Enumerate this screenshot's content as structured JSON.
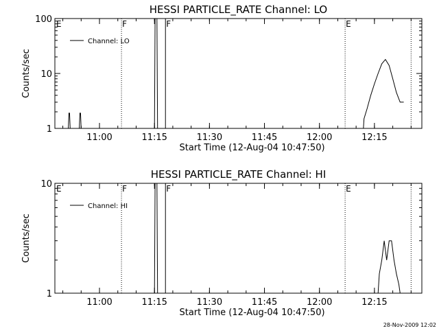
{
  "chart_data": [
    {
      "type": "line",
      "title": "HESSI PARTICLE_RATE Channel: LO",
      "xlabel": "Start Time (12-Aug-04 10:47:50)",
      "ylabel": "Counts/sec",
      "yscale": "log",
      "ylim": [
        1,
        100
      ],
      "xlim_minutes": [
        10.83,
        12.47
      ],
      "xticks": [
        "11:00",
        "11:15",
        "11:30",
        "11:45",
        "12:00",
        "12:15"
      ],
      "yticks": [
        "1",
        "10",
        "100"
      ],
      "legend": {
        "label": "Channel: LO",
        "placement": "top-left"
      },
      "markers": [
        {
          "label": "E",
          "time": "10:47:50",
          "style": "none"
        },
        {
          "label": "F",
          "time": "11:06",
          "style": "dotted"
        },
        {
          "label": "F",
          "time": "11:18",
          "style": "solid"
        },
        {
          "label": "E",
          "time": "12:07",
          "style": "dotted"
        }
      ],
      "series": [
        {
          "name": "Channel: LO",
          "x": [
            "10:51:30",
            "10:51:40",
            "10:51:50",
            "10:52:00",
            "10:54:30",
            "10:54:40",
            "10:54:50",
            "10:55:00",
            "11:15:00",
            "11:15:10",
            "11:15:40",
            "11:15:50",
            "12:12:00",
            "12:12:10",
            "12:13:00",
            "12:14:00",
            "12:15:00",
            "12:16:00",
            "12:17:00",
            "12:18:00",
            "12:19:00",
            "12:20:00",
            "12:21:00",
            "12:22:00",
            "12:23:00"
          ],
          "y": [
            1,
            1.9,
            1.9,
            1,
            1,
            1.9,
            1.9,
            1,
            1,
            100,
            100,
            1,
            1,
            1.5,
            2.3,
            4,
            6.5,
            10,
            15,
            18,
            14,
            8,
            4.5,
            3,
            3
          ]
        }
      ]
    },
    {
      "type": "line",
      "title": "HESSI PARTICLE_RATE Channel: HI",
      "xlabel": "Start Time (12-Aug-04 10:47:50)",
      "ylabel": "Counts/sec",
      "yscale": "log",
      "ylim": [
        1,
        10
      ],
      "xlim_minutes": [
        10.83,
        12.47
      ],
      "xticks": [
        "11:00",
        "11:15",
        "11:30",
        "11:45",
        "12:00",
        "12:15"
      ],
      "yticks": [
        "1",
        "10"
      ],
      "legend": {
        "label": "Channel: HI",
        "placement": "top-left"
      },
      "markers": [
        {
          "label": "E",
          "time": "10:47:50",
          "style": "none"
        },
        {
          "label": "F",
          "time": "11:06",
          "style": "dotted"
        },
        {
          "label": "F",
          "time": "11:18",
          "style": "solid"
        },
        {
          "label": "E",
          "time": "12:07",
          "style": "dotted"
        }
      ],
      "series": [
        {
          "name": "Channel: HI",
          "x": [
            "11:15:00",
            "11:15:10",
            "11:15:40",
            "11:15:50",
            "12:16:00",
            "12:16:20",
            "12:17:00",
            "12:17:40",
            "12:18:20",
            "12:19:00",
            "12:19:40",
            "12:20:20",
            "12:21:00",
            "12:21:40",
            "12:22:00"
          ],
          "y": [
            1,
            10,
            10,
            1,
            1,
            1.5,
            2,
            3,
            2,
            3,
            3,
            2,
            1.5,
            1.2,
            1
          ]
        }
      ]
    }
  ],
  "footer": "28-Nov-2009 12:02"
}
